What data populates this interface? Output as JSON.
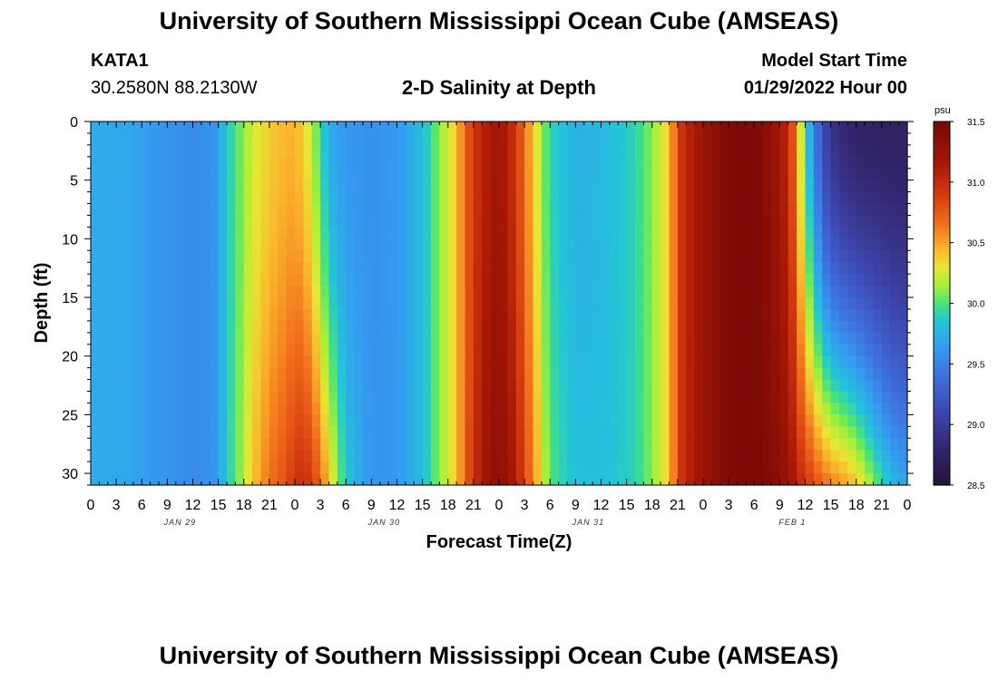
{
  "header": {
    "title": "University of Southern Mississippi Ocean Cube (AMSEAS)",
    "station_id": "KATA1",
    "station_coords": "30.2580N  88.2130W",
    "plot_title": "2-D Salinity at Depth",
    "start_label": "Model Start Time",
    "start_value": "01/29/2022 Hour 00"
  },
  "footer": {
    "title": "University of Southern Mississippi Ocean Cube (AMSEAS)"
  },
  "chart_data": {
    "type": "heatmap",
    "title": "2-D Salinity at Depth",
    "xlabel": "Forecast Time(Z)",
    "ylabel": "Depth (ft)",
    "x_range_hours": [
      0,
      96
    ],
    "y_range": [
      0,
      31
    ],
    "y_ticks": [
      "0",
      "5",
      "10",
      "15",
      "20",
      "25",
      "30"
    ],
    "x_tick_labels": [
      "0",
      "3",
      "6",
      "9",
      "12",
      "15",
      "18",
      "21",
      "0",
      "3",
      "6",
      "9",
      "12",
      "15",
      "18",
      "21",
      "0",
      "3",
      "6",
      "9",
      "12",
      "15",
      "18",
      "21",
      "0",
      "3",
      "6",
      "9",
      "12",
      "15",
      "18",
      "21",
      "0"
    ],
    "date_labels": [
      {
        "label": "JAN 29",
        "hour": 10.5
      },
      {
        "label": "JAN 30",
        "hour": 34.5
      },
      {
        "label": "JAN 31",
        "hour": 58.5
      },
      {
        "label": "FEB 1",
        "hour": 82.5
      }
    ],
    "colorbar": {
      "unit": "psu",
      "min": 28.5,
      "max": 31.5,
      "ticks": [
        "31.5",
        "31.0",
        "30.5",
        "30.0",
        "29.5",
        "29.0",
        "28.5"
      ]
    },
    "salinity_profile": {
      "hours": [
        0,
        4,
        8,
        12,
        14.5,
        16,
        17.5,
        19,
        21,
        23,
        24,
        25,
        26,
        27,
        28,
        30,
        33,
        36,
        39,
        41,
        43,
        44,
        45,
        46,
        47,
        48,
        49,
        50,
        52,
        54,
        57,
        60,
        64,
        66,
        68,
        68.5,
        69,
        70,
        72,
        74,
        75,
        76,
        78,
        79,
        80,
        81,
        82,
        83,
        83.5,
        84,
        84.5,
        85,
        85.5,
        86,
        86.5,
        87,
        88,
        89,
        90,
        91,
        92,
        93,
        94,
        95,
        96
      ],
      "surface": [
        29.72,
        29.7,
        29.62,
        29.55,
        29.6,
        29.85,
        30.05,
        30.25,
        30.38,
        30.45,
        30.45,
        30.38,
        30.2,
        29.95,
        29.72,
        29.62,
        29.58,
        29.62,
        29.8,
        30.1,
        30.4,
        30.7,
        30.92,
        31.05,
        31.15,
        31.2,
        31.1,
        30.92,
        30.4,
        29.9,
        29.75,
        29.78,
        29.9,
        30.1,
        30.4,
        30.6,
        30.85,
        31.05,
        31.25,
        31.38,
        31.42,
        31.45,
        31.45,
        31.4,
        31.3,
        31.2,
        31.0,
        30.6,
        30.25,
        30.0,
        29.75,
        29.55,
        29.35,
        29.2,
        29.05,
        28.95,
        28.85,
        28.8,
        28.77,
        28.75,
        28.75,
        28.74,
        28.74,
        28.74,
        28.74
      ],
      "bottom": [
        29.72,
        29.7,
        29.62,
        29.55,
        29.6,
        29.85,
        30.1,
        30.4,
        30.65,
        30.8,
        30.95,
        31.0,
        30.9,
        30.7,
        30.4,
        29.85,
        29.6,
        29.62,
        29.8,
        30.1,
        30.4,
        30.7,
        30.95,
        31.15,
        31.3,
        31.35,
        31.25,
        31.1,
        30.6,
        30.0,
        29.82,
        29.82,
        29.9,
        30.1,
        30.4,
        30.6,
        30.85,
        31.05,
        31.25,
        31.38,
        31.42,
        31.45,
        31.45,
        31.45,
        31.4,
        31.35,
        31.25,
        31.1,
        31.0,
        30.95,
        30.88,
        30.82,
        30.76,
        30.7,
        30.66,
        30.62,
        30.55,
        30.5,
        30.4,
        30.25,
        30.1,
        29.95,
        29.82,
        29.72,
        29.7
      ]
    }
  },
  "colors": {
    "background": "#ffffff",
    "axis": "#000000"
  }
}
